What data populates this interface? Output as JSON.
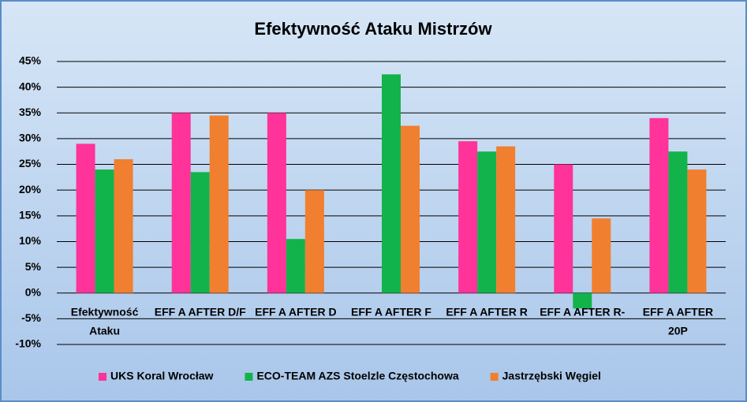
{
  "chart_data": {
    "type": "bar",
    "title": "Efektywność Ataku Mistrzów",
    "categories": [
      "Efektywność Ataku",
      "EFF A AFTER D/F",
      "EFF A AFTER D",
      "EFF A AFTER F",
      "EFF A AFTER R",
      "EFF A AFTER R-",
      "EFF A AFTER 20P"
    ],
    "series": [
      {
        "name": "UKS Koral Wrocław",
        "color": "#ff3399",
        "values": [
          29,
          35,
          35,
          0,
          29.5,
          25,
          34
        ]
      },
      {
        "name": "ECO-TEAM AZS Stoelzle Częstochowa",
        "color": "#13b34b",
        "values": [
          24,
          23.5,
          10.5,
          42.5,
          27.5,
          -3,
          27.5
        ]
      },
      {
        "name": "Jastrzębski Węgiel",
        "color": "#f07f30",
        "values": [
          26,
          34.5,
          20,
          32.5,
          28.5,
          14.5,
          24
        ]
      }
    ],
    "ylim": [
      -10,
      45
    ],
    "yticks": [
      {
        "value": -10,
        "label": "-10%"
      },
      {
        "value": -5,
        "label": "-5%"
      },
      {
        "value": 0,
        "label": "0%"
      },
      {
        "value": 5,
        "label": "5%"
      },
      {
        "value": 10,
        "label": "10%"
      },
      {
        "value": 15,
        "label": "15%"
      },
      {
        "value": 20,
        "label": "20%"
      },
      {
        "value": 25,
        "label": "25%"
      },
      {
        "value": 30,
        "label": "30%"
      },
      {
        "value": 35,
        "label": "35%"
      },
      {
        "value": 40,
        "label": "40%"
      },
      {
        "value": 45,
        "label": "45%"
      }
    ],
    "grid": true,
    "legend": "bottom"
  }
}
